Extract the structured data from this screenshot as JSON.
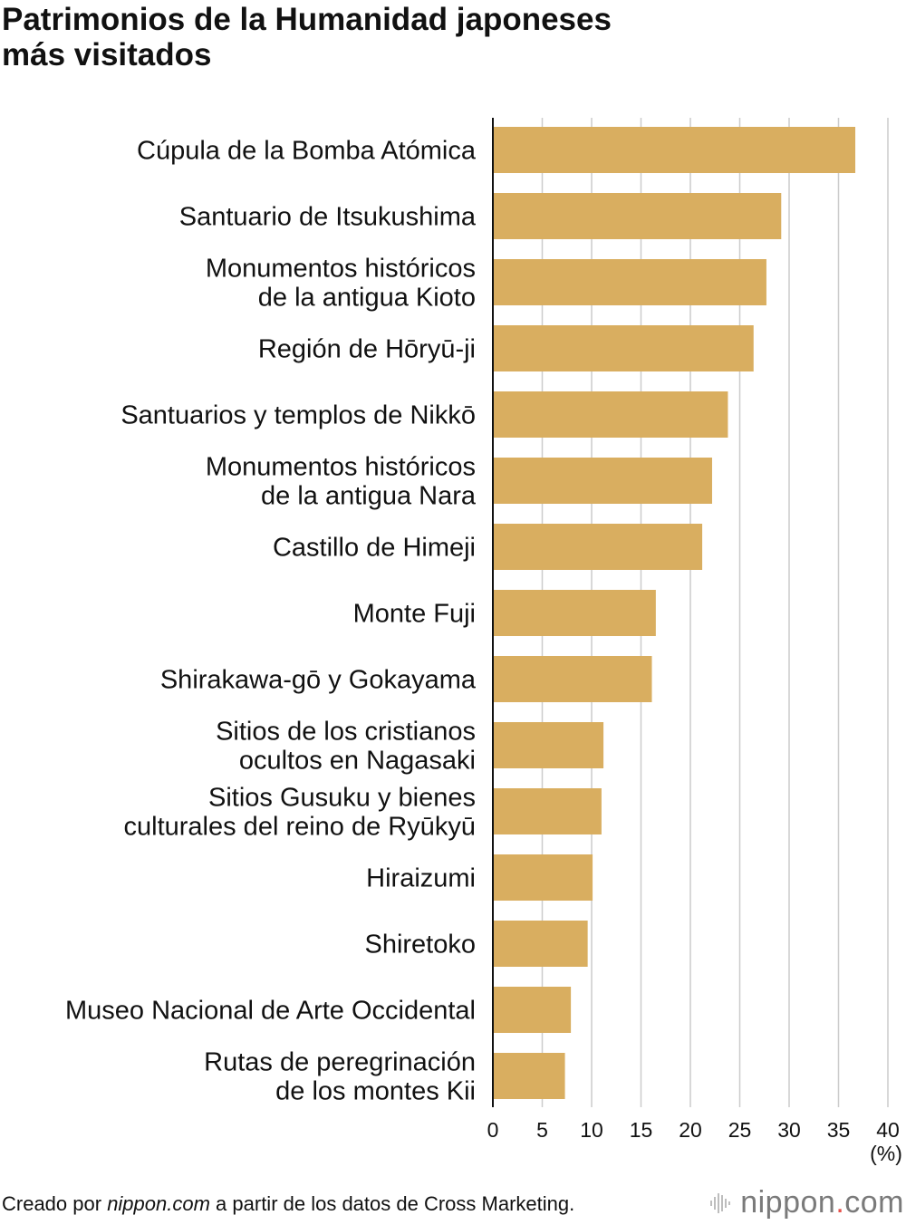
{
  "title": {
    "line1": "Patrimonios de la Humanidad japoneses",
    "line2": "más visitados"
  },
  "chart_data": {
    "type": "bar",
    "orientation": "horizontal",
    "categories": [
      [
        "Cúpula de la Bomba Atómica"
      ],
      [
        "Santuario de Itsukushima"
      ],
      [
        "Monumentos históricos",
        "de la antigua Kioto"
      ],
      [
        "Región de Hōryū-ji"
      ],
      [
        "Santuarios y templos de Nikkō"
      ],
      [
        "Monumentos históricos",
        "de la antigua Nara"
      ],
      [
        "Castillo de Himeji"
      ],
      [
        "Monte Fuji"
      ],
      [
        "Shirakawa-gō y Gokayama"
      ],
      [
        "Sitios de los cristianos",
        "ocultos en Nagasaki"
      ],
      [
        "Sitios Gusuku y bienes",
        "culturales del reino de Ryūkyū"
      ],
      [
        "Hiraizumi"
      ],
      [
        "Shiretoko"
      ],
      [
        "Museo Nacional de Arte Occidental"
      ],
      [
        "Rutas de peregrinación",
        "de los montes Kii"
      ]
    ],
    "values": [
      36.7,
      29.2,
      27.7,
      26.4,
      23.8,
      22.2,
      21.2,
      16.5,
      16.1,
      11.2,
      11.0,
      10.1,
      9.6,
      7.9,
      7.3
    ],
    "xlim": [
      0,
      40
    ],
    "xticks": [
      "0",
      "5",
      "10",
      "15",
      "20",
      "25",
      "30",
      "35",
      "40"
    ],
    "xlabel": "(%)",
    "grid": true,
    "bar_color": "#d9ae60",
    "grid_color": "#cccccc",
    "axis_color": "#111111"
  },
  "footer": {
    "prefix": "Creado por ",
    "source": "nippon.com",
    "suffix": " a partir de los datos de Cross Marketing."
  },
  "logo": {
    "name": "nippon",
    "dot": ".",
    "tld": "com",
    "accent_color": "#e6514b"
  }
}
